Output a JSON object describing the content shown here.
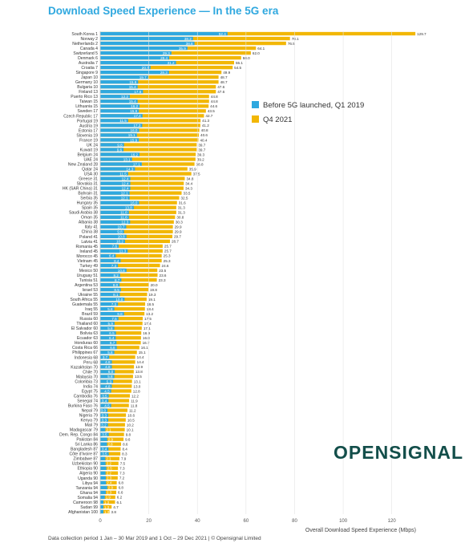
{
  "title": "Download Speed Experience — In the 5G era",
  "footer": "Data collection period 1 Jan – 30 Mar 2019 and 1 Oct – 29 Dec 2021 | © Opensignal Limited",
  "logo": "OPENSIGNAL",
  "colors": {
    "before": "#2fa8df",
    "q4": "#f2b705",
    "title": "#2fa8df"
  },
  "chart_data": {
    "type": "bar",
    "orientation": "horizontal",
    "xlabel": "Overall Download Speed Experience (Mbps)",
    "xlim": [
      0,
      130
    ],
    "xticks": [
      0,
      20,
      40,
      60,
      80,
      100,
      120
    ],
    "legend_placement": "right",
    "categories": [
      "South Korea 1",
      "Norway 2",
      "Netherlands 2",
      "Canada 4",
      "Switzerland 5",
      "Denmark 6",
      "Australia 7",
      "Croatia 7",
      "Singapore 9",
      "Japan 10",
      "Germany 10",
      "Bulgaria 10",
      "Finland 13",
      "Puerto Rico 13",
      "Taiwan 15",
      "Lithuania 15",
      "Sweden 17",
      "Czech Republic 17",
      "Portugal 19",
      "Austria 19",
      "Estonia 17",
      "Slovenia 19",
      "France 19",
      "UK 24",
      "Kuwait 19",
      "Belgium 24",
      "UAE 24",
      "New Zealand 28",
      "Qatar 24",
      "USA 30",
      "Greece 31",
      "Slovakia 31",
      "HK (SAR China) 31",
      "Bahrain 31",
      "Serbia 35",
      "Hungary 35",
      "Spain 35",
      "Saudi Arabia 38",
      "Oman 35",
      "Albania 38",
      "Italy 41",
      "China 38",
      "Poland 41",
      "Latvia 41",
      "Romania 45",
      "Ireland 45",
      "Morocco 45",
      "Vietnam 45",
      "Turkey 49",
      "Mexico 50",
      "Uruguay 51",
      "Tunisia 51",
      "Argentina 53",
      "Israel 53",
      "Ukraine 55",
      "South Africa 55",
      "Guatemala 55",
      "Iraq 55",
      "Brazil 59",
      "Russia 60",
      "Thailand 60",
      "El Salvador 60",
      "Bolivia 63",
      "Ecuador 63",
      "Honduras 60",
      "Costa Rica 66",
      "Philippines 67",
      "Indonesia 68",
      "Peru 68",
      "Kazakhstan 70",
      "Chile 70",
      "Malaysia 70",
      "Colombia 73",
      "India 74",
      "Egypt 75",
      "Cambodia 76",
      "Senegal 74",
      "Burkina Faso 76",
      "Nepal 79",
      "Nigeria 79",
      "Kenya 79",
      "Mali 79",
      "Madagascar 79",
      "Dem. Rep. Congo 84",
      "Pakistan 84",
      "Sri Lanka 86",
      "Bangladesh 87",
      "Côte d'Ivoire 87",
      "Zimbabwe 87",
      "Uzbekistan 90",
      "Ethiopia 90",
      "Algeria 90",
      "Uganda 90",
      "Libya 94",
      "Tanzania 94",
      "Ghana 94",
      "Somalia 94",
      "Cameroon 98",
      "Sudan 99",
      "Afghanistan 100"
    ],
    "series": [
      {
        "name": "Before 5G launched, Q1 2019",
        "values": [
          52.4,
          38.2,
          38.8,
          35.9,
          29.3,
          28.4,
          31.2,
          20.7,
          28.3,
          19.7,
          15.6,
          15.4,
          17.6,
          12.2,
          15.4,
          16.2,
          15.9,
          17.4,
          11.5,
          17.3,
          16.0,
          15.1,
          15.9,
          9.8,
          9.6,
          16.2,
          13.1,
          17.1,
          14.3,
          11.5,
          12.4,
          12.4,
          12.4,
          12.1,
          12.1,
          16.0,
          13.8,
          11.8,
          11.8,
          12.3,
          10.7,
          9.8,
          10.8,
          10.2,
          7.6,
          11.3,
          6.4,
          8.4,
          7.3,
          10.8,
          8.2,
          8.7,
          8.0,
          8.5,
          8.1,
          10.0,
          7.3,
          5.8,
          9.8,
          7.5,
          5.9,
          5.8,
          6.5,
          6.4,
          6.7,
          6.8,
          5.8,
          3.7,
          4.8,
          4.8,
          6.0,
          5.8,
          5.3,
          4.8,
          4.5,
          3.5,
          3.4,
          4.5,
          3.0,
          3.3,
          3.3,
          3.2,
          2.1,
          3.5,
          2.9,
          2.8,
          3.4,
          3.5,
          2.1,
          2.2,
          2.5,
          2.2,
          2.3,
          2.4,
          2.9,
          2.3,
          1.9,
          1.3,
          1.3,
          1.3
        ]
      },
      {
        "name": "Q4 2021",
        "values": [
          129.7,
          78.1,
          76.5,
          64.1,
          62.0,
          58.0,
          55.1,
          54.5,
          49.9,
          48.7,
          48.7,
          47.6,
          47.6,
          44.8,
          44.8,
          44.6,
          43.5,
          42.7,
          41.3,
          41.2,
          40.8,
          40.6,
          40.4,
          39.7,
          39.7,
          39.3,
          39.2,
          38.8,
          35.9,
          37.5,
          34.8,
          34.4,
          34.3,
          33.5,
          32.5,
          31.6,
          31.3,
          31.3,
          30.8,
          30.3,
          29.9,
          29.9,
          29.7,
          28.7,
          25.7,
          25.7,
          25.3,
          25.3,
          24.6,
          23.5,
          23.6,
          23.3,
          20.0,
          19.8,
          19.3,
          19.1,
          18.5,
          18.4,
          18.2,
          17.5,
          17.4,
          17.1,
          16.9,
          16.8,
          16.7,
          16.1,
          15.1,
          14.4,
          14.4,
          13.9,
          13.8,
          13.5,
          13.1,
          13.0,
          12.8,
          12.2,
          11.9,
          11.8,
          11.2,
          10.6,
          10.5,
          10.2,
          10.1,
          9.8,
          9.6,
          8.6,
          8.4,
          8.3,
          7.9,
          7.5,
          7.3,
          7.3,
          7.2,
          6.8,
          6.8,
          6.6,
          6.2,
          6.1,
          4.7,
          3.8
        ]
      }
    ]
  }
}
